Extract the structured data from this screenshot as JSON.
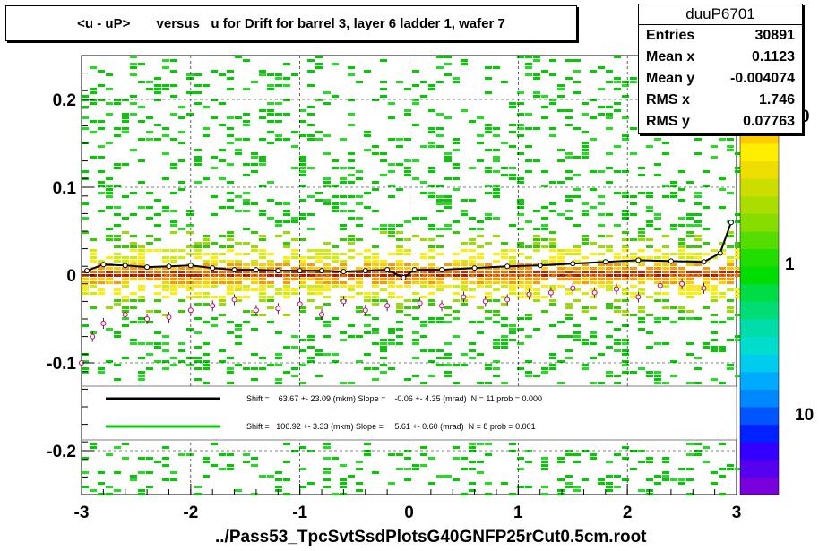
{
  "title": "<u - uP>       versus   u for Drift for barrel 3, layer 6 ladder 1, wafer 7",
  "footer": "../Pass53_TpcSvtSsdPlotsG40GNFP25rCut0.5cm.root",
  "stats": {
    "name": "duuP6701",
    "rows": [
      {
        "label": "Entries",
        "value": "30891"
      },
      {
        "label": "Mean x",
        "value": "0.1123"
      },
      {
        "label": "Mean y",
        "value": "-0.004074"
      },
      {
        "label": "RMS x",
        "value": "1.746"
      },
      {
        "label": "RMS y",
        "value": "0.07763"
      }
    ]
  },
  "colors": {
    "frame": "#000000",
    "profile_black": "#000000",
    "profile_green": "#00cc00",
    "open_markers": "#cc0066"
  },
  "chart_data": {
    "type": "heatmap",
    "xlim": [
      -3,
      3
    ],
    "ylim": [
      -0.25,
      0.25
    ],
    "x_ticks": [
      -3,
      -2,
      -1,
      0,
      1,
      2,
      3
    ],
    "x_tick_labels": [
      "-3",
      "-2",
      "-1",
      "0",
      "1",
      "2",
      "3"
    ],
    "y_ticks": [
      -0.2,
      -0.1,
      0,
      0.1,
      0.2
    ],
    "y_tick_labels": [
      "-0.2",
      "-0.1",
      "0",
      "0.1",
      "0.2"
    ],
    "grid": true,
    "palette_labels": [
      {
        "value": 10,
        "text": "10"
      },
      {
        "value": 1,
        "text": "1"
      },
      {
        "value": 0,
        "text": "0"
      }
    ],
    "legend": {
      "placement": "lower-center",
      "entries": [
        {
          "color": "black",
          "text": "Shift =    63.67 +- 23.09 (mkm) Slope =    -0.06 +- 4.35 (mrad)  N = 11 prob = 0.000"
        },
        {
          "color": "green",
          "text": "Shift =   106.92 +- 3.33 (mkm) Slope =     5.61 +- 0.60 (mrad)  N = 8 prob = 0.001"
        }
      ]
    },
    "mean_profile": {
      "x": [
        -2.95,
        -2.8,
        -2.6,
        -2.4,
        -2.2,
        -2.0,
        -1.8,
        -1.6,
        -1.4,
        -1.2,
        -1.0,
        -0.8,
        -0.6,
        -0.4,
        -0.2,
        -0.05,
        0.05,
        0.3,
        0.6,
        0.9,
        1.2,
        1.5,
        1.8,
        2.1,
        2.4,
        2.7,
        2.85,
        2.95
      ],
      "y": [
        0.005,
        0.012,
        0.011,
        0.009,
        0.01,
        0.011,
        0.008,
        0.006,
        0.006,
        0.005,
        0.005,
        0.005,
        0.004,
        0.005,
        0.006,
        -0.003,
        0.006,
        0.006,
        0.008,
        0.01,
        0.011,
        0.013,
        0.015,
        0.017,
        0.016,
        0.015,
        0.025,
        0.06
      ]
    },
    "peak_profile": {
      "x": [
        -3.0,
        -2.9,
        -2.8,
        -2.6,
        -2.4,
        -2.2,
        -2.0,
        -1.8,
        -1.6,
        -1.4,
        -1.2,
        -1.0,
        -0.8,
        -0.6,
        -0.4,
        -0.2,
        0.1,
        0.3,
        0.5,
        0.7,
        0.9,
        1.1,
        1.3,
        1.5,
        1.7,
        1.9,
        2.1,
        2.3,
        2.5,
        2.7
      ],
      "y": [
        -0.1,
        -0.07,
        -0.055,
        -0.045,
        -0.05,
        -0.048,
        -0.04,
        -0.035,
        -0.028,
        -0.04,
        -0.038,
        -0.033,
        -0.045,
        -0.03,
        -0.04,
        -0.035,
        -0.032,
        -0.035,
        -0.025,
        -0.03,
        -0.028,
        -0.022,
        -0.02,
        -0.015,
        -0.02,
        -0.016,
        -0.025,
        -0.012,
        -0.01,
        -0.015
      ]
    }
  }
}
